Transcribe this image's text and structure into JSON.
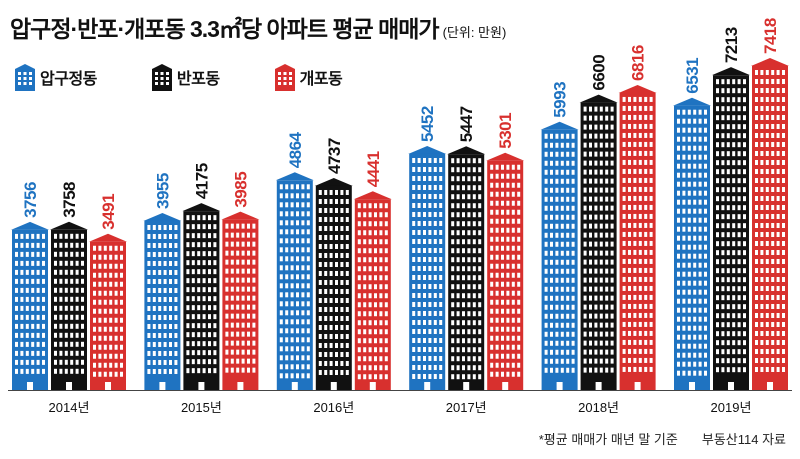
{
  "title": "압구정·반포·개포동 3.3㎡당 아파트 평균 매매가",
  "unit_label": "(단위: 만원)",
  "note": "*평균 매매가 매년 말 기준",
  "source": "부동산114 자료",
  "chart_data": {
    "type": "bar",
    "categories": [
      "2014년",
      "2015년",
      "2016년",
      "2017년",
      "2018년",
      "2019년"
    ],
    "series": [
      {
        "name": "압구정동",
        "color": "#1f73c1",
        "values": [
          3756,
          3955,
          4864,
          5452,
          5993,
          6531
        ]
      },
      {
        "name": "반포동",
        "color": "#111111",
        "values": [
          3758,
          4175,
          4737,
          5447,
          6600,
          7213
        ]
      },
      {
        "name": "개포동",
        "color": "#d8302e",
        "values": [
          3491,
          3985,
          4441,
          5301,
          6816,
          7418
        ]
      }
    ],
    "ylim": [
      0,
      7418
    ],
    "legend": "top-left",
    "grid": false
  }
}
